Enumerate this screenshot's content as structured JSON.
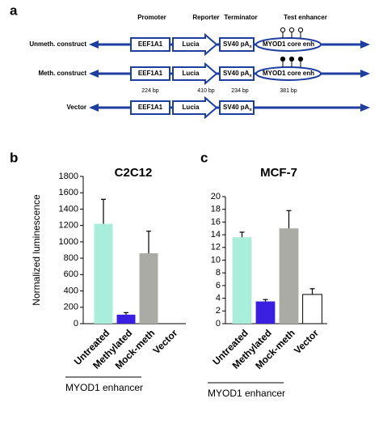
{
  "diagram": {
    "panel": "a",
    "headers": [
      "Promoter",
      "Reporter",
      "Terminator",
      "Test enhancer"
    ],
    "promoter": "EEF1A1",
    "reporter": "Lucia",
    "terminator": "SV40 pA",
    "terminator_sub": "n",
    "enhancer": "MYOD1 core enh",
    "rows": [
      {
        "label": "Unmeth. construct",
        "enhancer": true,
        "methylated": false
      },
      {
        "label": "Meth. construct",
        "enhancer": true,
        "methylated": true
      },
      {
        "label": "Vector",
        "enhancer": false,
        "methylated": false
      }
    ],
    "sizes": [
      "224 bp",
      "410 bp",
      "234 bp",
      "381 bp"
    ]
  },
  "chart_data": [
    {
      "type": "bar",
      "panel": "b",
      "title": "C2C12",
      "y_label": "Normalized luminescence",
      "categories": [
        "Untreated",
        "Methylated",
        "Mock-meth",
        "Vector"
      ],
      "values": [
        1220,
        110,
        860,
        null
      ],
      "errors": [
        300,
        25,
        270,
        null
      ],
      "colors": [
        "#a8eedb",
        "#3a1fe0",
        "#a9aba4",
        "#ffffff"
      ],
      "ylim": [
        0,
        1800
      ],
      "yticks": [
        0,
        200,
        400,
        600,
        800,
        1000,
        1200,
        1400,
        1600,
        1800
      ],
      "group_label": "MYOD1  enhancer"
    },
    {
      "type": "bar",
      "panel": "c",
      "title": "MCF-7",
      "categories": [
        "Untreated",
        "Methylated",
        "Mock-meth",
        "Vector"
      ],
      "values": [
        13.6,
        3.5,
        15,
        4.6
      ],
      "errors": [
        0.8,
        0.3,
        2.8,
        0.9
      ],
      "colors": [
        "#a8eedb",
        "#3a1fe0",
        "#a9aba4",
        "#ffffff"
      ],
      "ylim": [
        0,
        20
      ],
      "yticks": [
        0,
        2,
        4,
        6,
        8,
        10,
        12,
        14,
        16,
        18,
        20
      ],
      "group_label": "MYOD1  enhancer"
    }
  ]
}
